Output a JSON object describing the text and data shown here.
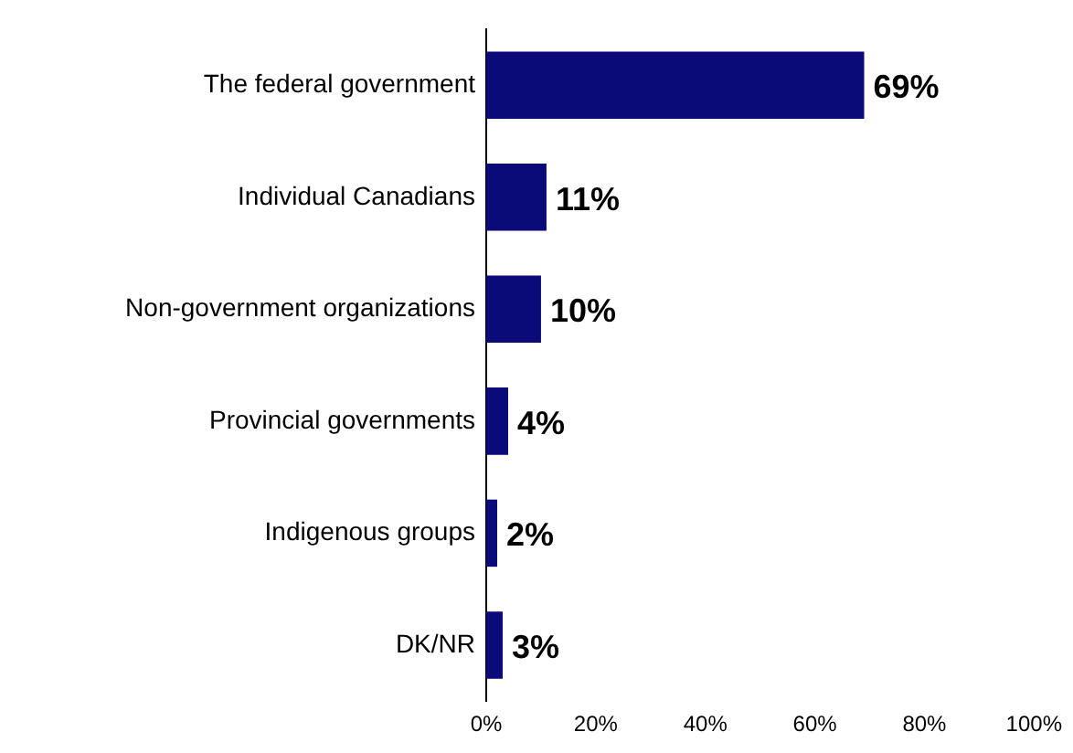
{
  "chart_data": {
    "type": "bar",
    "orientation": "horizontal",
    "categories": [
      "The federal government",
      "Individual Canadians",
      "Non-government organizations",
      "Provincial governments",
      "Indigenous groups",
      "DK/NR"
    ],
    "values": [
      69,
      11,
      10,
      4,
      2,
      3
    ],
    "color": "#0a0a78",
    "xlim": [
      0,
      100
    ],
    "xticks": [
      {
        "value": 0,
        "label": "0%"
      },
      {
        "value": 20,
        "label": "20%"
      },
      {
        "value": 40,
        "label": "40%"
      },
      {
        "value": 60,
        "label": "60%"
      },
      {
        "value": 80,
        "label": "80%"
      },
      {
        "value": 100,
        "label": "100%"
      }
    ],
    "value_labels": [
      "69%",
      "11%",
      "10%",
      "4%",
      "2%",
      "3%"
    ],
    "grid": false,
    "legend": false
  }
}
